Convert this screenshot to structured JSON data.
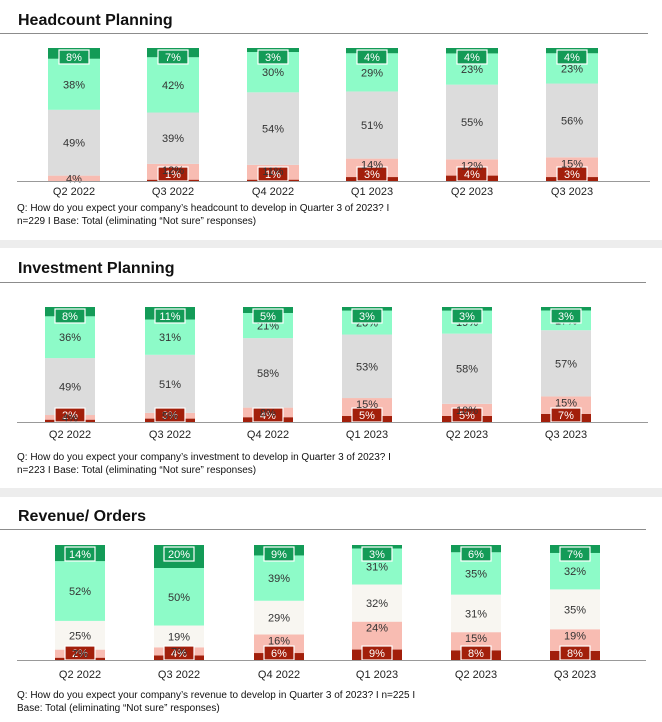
{
  "colors": {
    "strongly_up": "#139b57",
    "up": "#8dfbc8",
    "same": "#dcdcdc",
    "same_revenue": "#f8f6f1",
    "down": "#f8bcb2",
    "strongly_down": "#a21f0b"
  },
  "panels": [
    {
      "title": "Headcount Planning",
      "note_line1": "Q: How do you expect your company’s headcount to develop in Quarter 3 of 2023? I",
      "note_line2": "n=229 I Base: Total (eliminating “Not sure” responses)"
    },
    {
      "title": "Investment Planning",
      "note_line1": "Q: How do you expect your company’s investment to develop in Quarter 3 of 2023? I",
      "note_line2": "n=223 I Base: Total (eliminating “Not sure” responses)"
    },
    {
      "title": "Revenue/ Orders",
      "note_line1": "Q: How do you expect your company’s revenue to develop in Quarter 3 of 2023? I n=225 I",
      "note_line2": "Base: Total (eliminating “Not sure” responses)"
    }
  ],
  "chart_data": [
    {
      "type": "bar",
      "stacked": true,
      "title": "Headcount Planning",
      "categories": [
        "Q2 2022",
        "Q3 2022",
        "Q4 2022",
        "Q1 2023",
        "Q2 2023",
        "Q3 2023"
      ],
      "series": [
        {
          "values": [
            0,
            1,
            1,
            3,
            4,
            3
          ]
        },
        {
          "values": [
            4,
            12,
            11,
            14,
            12,
            15
          ]
        },
        {
          "values": [
            49,
            39,
            54,
            51,
            55,
            56
          ]
        },
        {
          "values": [
            38,
            42,
            30,
            29,
            23,
            23
          ]
        },
        {
          "values": [
            8,
            7,
            3,
            4,
            4,
            4
          ]
        }
      ]
    },
    {
      "type": "bar",
      "stacked": true,
      "title": "Investment Planning",
      "categories": [
        "Q2 2022",
        "Q3 2022",
        "Q4 2022",
        "Q1 2023",
        "Q2 2023",
        "Q3 2023"
      ],
      "series": [
        {
          "values": [
            2,
            3,
            4,
            5,
            5,
            7
          ]
        },
        {
          "values": [
            4,
            5,
            8,
            15,
            10,
            15
          ]
        },
        {
          "values": [
            49,
            51,
            58,
            53,
            58,
            57
          ]
        },
        {
          "values": [
            36,
            31,
            21,
            20,
            19,
            17
          ]
        },
        {
          "values": [
            8,
            11,
            5,
            3,
            3,
            3
          ]
        }
      ]
    },
    {
      "type": "bar",
      "stacked": true,
      "title": "Revenue/ Orders",
      "categories": [
        "Q2 2022",
        "Q3 2022",
        "Q4 2022",
        "Q1 2023",
        "Q2 2023",
        "Q3 2023"
      ],
      "series": [
        {
          "values": [
            2,
            4,
            6,
            9,
            8,
            8
          ]
        },
        {
          "values": [
            7,
            7,
            16,
            24,
            15,
            19
          ]
        },
        {
          "values": [
            25,
            19,
            29,
            32,
            31,
            35
          ]
        },
        {
          "values": [
            52,
            50,
            39,
            31,
            35,
            32
          ]
        },
        {
          "values": [
            14,
            20,
            9,
            3,
            6,
            7
          ]
        }
      ]
    }
  ]
}
